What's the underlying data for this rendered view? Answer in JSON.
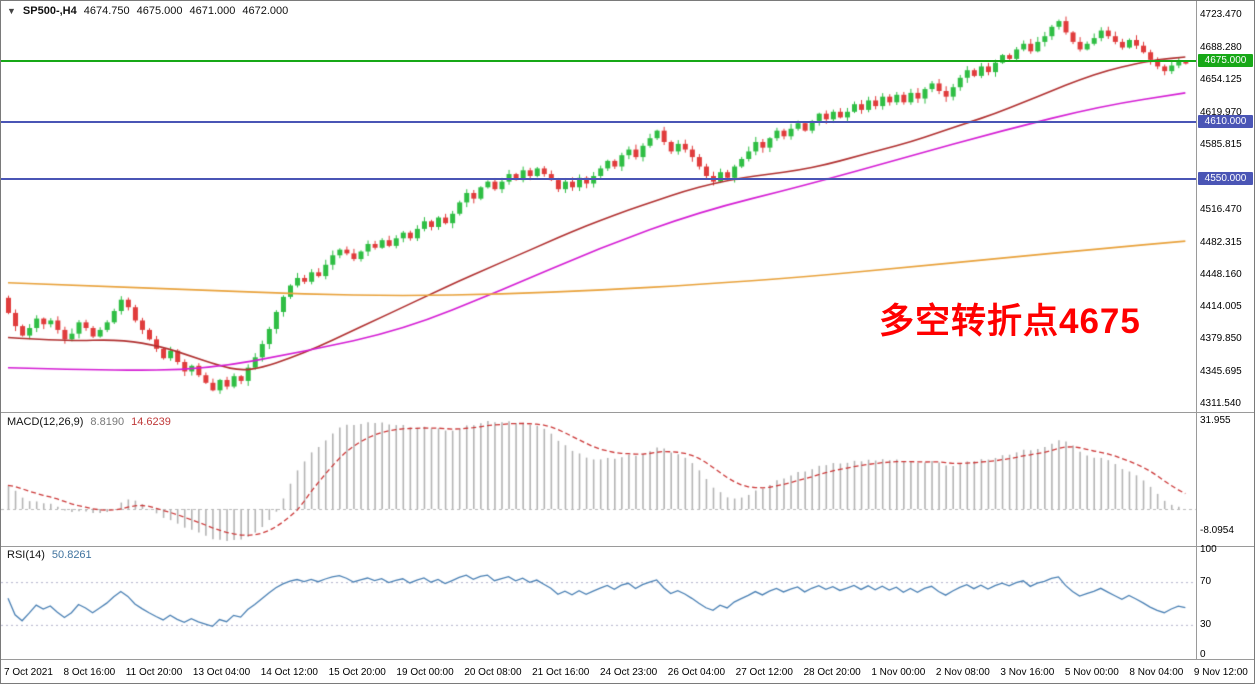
{
  "header": {
    "symbol_period": "SP500-,H4",
    "open": "4674.750",
    "high": "4675.000",
    "low": "4671.000",
    "close": "4672.000"
  },
  "annotation": {
    "text": "多空转折点4675",
    "color": "#ff0000"
  },
  "price_axis": {
    "labels": [
      "4723.470",
      "4688.280",
      "4654.125",
      "4619.970",
      "4585.815",
      "4516.470",
      "4482.315",
      "4448.160",
      "4414.005",
      "4379.850",
      "4345.695",
      "4311.540"
    ]
  },
  "level_lines": [
    {
      "price": 4675.0,
      "label": "4675.000",
      "color": "#17a817"
    },
    {
      "price": 4610.0,
      "label": "4610.000",
      "color": "#4a55b5"
    },
    {
      "price": 4550.0,
      "label": "4550.000",
      "color": "#4a55b5"
    }
  ],
  "macd_panel": {
    "label": "MACD(12,26,9)",
    "value_main": "8.8190",
    "value_signal": "14.6239",
    "axis_max": "31.955",
    "axis_min": "-8.0954",
    "histogram_color": "#b4b4b4",
    "signal_color": "#cc3a3a"
  },
  "rsi_panel": {
    "label": "RSI(14)",
    "value": "50.8261",
    "axis_labels": [
      "100",
      "70",
      "30",
      "0"
    ],
    "levels": [
      70,
      30
    ],
    "line_color": "#4a80b4"
  },
  "chart_data": {
    "type": "candlestick",
    "title": "SP500- H4 with MACD(12,26,9) and RSI(14)",
    "y_axis": {
      "price_top": 4723.47,
      "price_bottom": 4311.54
    },
    "x_labels": [
      "7 Oct 2021",
      "8 Oct 16:00",
      "11 Oct 20:00",
      "13 Oct 04:00",
      "14 Oct 12:00",
      "15 Oct 20:00",
      "19 Oct 00:00",
      "20 Oct 08:00",
      "21 Oct 16:00",
      "24 Oct 23:00",
      "26 Oct 04:00",
      "27 Oct 12:00",
      "28 Oct 20:00",
      "1 Nov 00:00",
      "2 Nov 08:00",
      "3 Nov 16:00",
      "5 Nov 00:00",
      "8 Nov 04:00",
      "9 Nov 12:00"
    ],
    "bull_color": "#2fbe44",
    "bear_color": "#e03c3c",
    "candles": {
      "first_open": 4424,
      "closes": [
        4408,
        4394,
        4384,
        4392,
        4402,
        4396,
        4400,
        4390,
        4380,
        4386,
        4398,
        4392,
        4383,
        4390,
        4398,
        4410,
        4422,
        4414,
        4400,
        4390,
        4380,
        4370,
        4360,
        4368,
        4356,
        4346,
        4352,
        4342,
        4334,
        4326,
        4337,
        4330,
        4341,
        4336,
        4350,
        4361,
        4375,
        4391,
        4409,
        4425,
        4437,
        4445,
        4441,
        4451,
        4447,
        4459,
        4469,
        4475,
        4471,
        4465,
        4473,
        4481,
        4477,
        4485,
        4479,
        4487,
        4493,
        4487,
        4497,
        4505,
        4499,
        4509,
        4503,
        4513,
        4525,
        4535,
        4529,
        4541,
        4547,
        4539,
        4547,
        4555,
        4549,
        4559,
        4553,
        4561,
        4555,
        4549,
        4539,
        4547,
        4541,
        4551,
        4545,
        4553,
        4561,
        4569,
        4563,
        4575,
        4581,
        4573,
        4585,
        4593,
        4601,
        4589,
        4579,
        4587,
        4581,
        4573,
        4563,
        4553,
        4547,
        4557,
        4551,
        4563,
        4571,
        4579,
        4589,
        4583,
        4593,
        4601,
        4595,
        4603,
        4609,
        4601,
        4611,
        4619,
        4613,
        4621,
        4615,
        4621,
        4629,
        4623,
        4633,
        4627,
        4637,
        4631,
        4639,
        4631,
        4641,
        4635,
        4645,
        4651,
        4643,
        4637,
        4647,
        4657,
        4665,
        4659,
        4669,
        4663,
        4673,
        4681,
        4677,
        4687,
        4693,
        4685,
        4695,
        4701,
        4711,
        4717,
        4705,
        4695,
        4687,
        4693,
        4699,
        4707,
        4701,
        4695,
        4689,
        4697,
        4691,
        4684,
        4676,
        4669,
        4664,
        4670,
        4674.75,
        4672
      ]
    },
    "ma_lines": [
      {
        "name": "ma-fast-red",
        "color": "#b03030",
        "points": [
          [
            0,
            4382
          ],
          [
            8,
            4378
          ],
          [
            16,
            4380
          ],
          [
            22,
            4372
          ],
          [
            26,
            4362
          ],
          [
            30,
            4352
          ],
          [
            33,
            4347
          ],
          [
            36,
            4350
          ],
          [
            40,
            4360
          ],
          [
            44,
            4372
          ],
          [
            48,
            4386
          ],
          [
            52,
            4400
          ],
          [
            56,
            4414
          ],
          [
            60,
            4428
          ],
          [
            64,
            4442
          ],
          [
            68,
            4455
          ],
          [
            72,
            4468
          ],
          [
            76,
            4481
          ],
          [
            80,
            4494
          ],
          [
            84,
            4506
          ],
          [
            88,
            4517
          ],
          [
            92,
            4527
          ],
          [
            96,
            4537
          ],
          [
            100,
            4545
          ],
          [
            104,
            4551
          ],
          [
            108,
            4555
          ],
          [
            112,
            4559
          ],
          [
            116,
            4565
          ],
          [
            120,
            4573
          ],
          [
            124,
            4581
          ],
          [
            128,
            4589
          ],
          [
            132,
            4599
          ],
          [
            136,
            4609
          ],
          [
            140,
            4619
          ],
          [
            144,
            4631
          ],
          [
            148,
            4643
          ],
          [
            152,
            4655
          ],
          [
            156,
            4665
          ],
          [
            160,
            4672
          ],
          [
            163,
            4676
          ],
          [
            167,
            4679
          ]
        ]
      },
      {
        "name": "ma-mid-magenta",
        "color": "#d41ed4",
        "points": [
          [
            0,
            4350
          ],
          [
            14,
            4347
          ],
          [
            28,
            4348
          ],
          [
            42,
            4367
          ],
          [
            56,
            4390
          ],
          [
            70,
            4432
          ],
          [
            84,
            4477
          ],
          [
            98,
            4515
          ],
          [
            113,
            4543
          ],
          [
            127,
            4572
          ],
          [
            141,
            4601
          ],
          [
            155,
            4627
          ],
          [
            167,
            4641
          ]
        ]
      },
      {
        "name": "ma-slow-orange",
        "color": "#e8a23c",
        "points": [
          [
            0,
            4440
          ],
          [
            14,
            4436
          ],
          [
            28,
            4432
          ],
          [
            42,
            4428
          ],
          [
            56,
            4426
          ],
          [
            70,
            4428
          ],
          [
            84,
            4432
          ],
          [
            98,
            4438
          ],
          [
            113,
            4446
          ],
          [
            127,
            4456
          ],
          [
            141,
            4466
          ],
          [
            155,
            4476
          ],
          [
            167,
            4484
          ]
        ]
      }
    ],
    "indicators": {
      "macd": {
        "fast": 12,
        "slow": 26,
        "signal": 9,
        "seed_gap": 8
      },
      "rsi": {
        "period": 14
      }
    }
  },
  "time_axis": {
    "labels": [
      "7 Oct 2021",
      "8 Oct 16:00",
      "11 Oct 20:00",
      "13 Oct 04:00",
      "14 Oct 12:00",
      "15 Oct 20:00",
      "19 Oct 00:00",
      "20 Oct 08:00",
      "21 Oct 16:00",
      "24 Oct 23:00",
      "26 Oct 04:00",
      "27 Oct 12:00",
      "28 Oct 20:00",
      "1 Nov 00:00",
      "2 Nov 08:00",
      "3 Nov 16:00",
      "5 Nov 00:00",
      "8 Nov 04:00",
      "9 Nov 12:00"
    ]
  }
}
